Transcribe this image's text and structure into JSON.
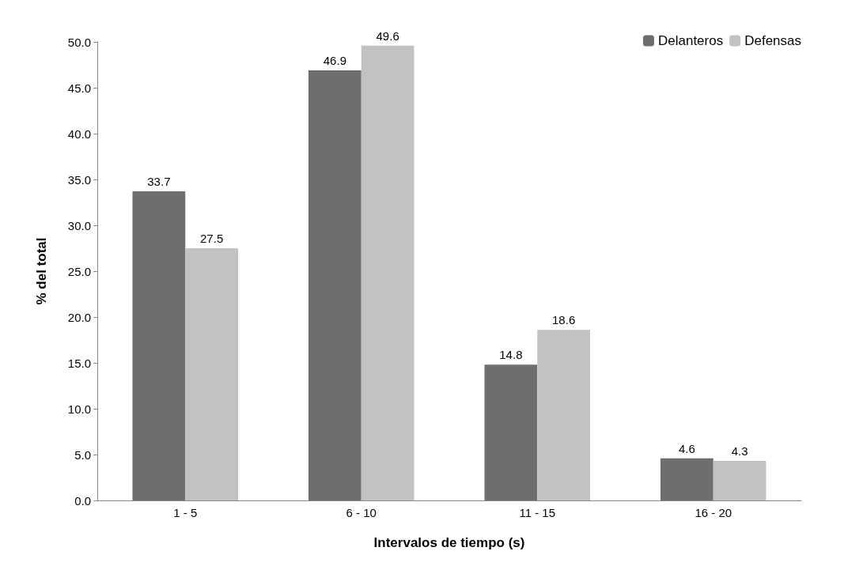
{
  "chart_data": {
    "type": "bar",
    "xlabel": "Intervalos de tiempo (s)",
    "ylabel": "% del total",
    "categories": [
      "1 - 5",
      "6 - 10",
      "11 - 15",
      "16 - 20"
    ],
    "series": [
      {
        "name": "Delanteros",
        "color": "#6e6e6e",
        "values": [
          33.7,
          46.9,
          14.8,
          4.6
        ]
      },
      {
        "name": "Defensas",
        "color": "#c2c2c2",
        "values": [
          27.5,
          49.6,
          18.6,
          4.3
        ]
      }
    ],
    "ylim": [
      0,
      50
    ],
    "yticks": [
      {
        "value": 0,
        "label": "0.0"
      },
      {
        "value": 5,
        "label": "5.0"
      },
      {
        "value": 10,
        "label": "10.0"
      },
      {
        "value": 15,
        "label": "15.0"
      },
      {
        "value": 20,
        "label": "20.0"
      },
      {
        "value": 25,
        "label": "25.0"
      },
      {
        "value": 30,
        "label": "30.0"
      },
      {
        "value": 35,
        "label": "35.0"
      },
      {
        "value": 40,
        "label": "40.0"
      },
      {
        "value": 45,
        "label": "45.0"
      },
      {
        "value": 50,
        "label": "50.0"
      }
    ],
    "data_labels": true,
    "legend": "top right"
  }
}
